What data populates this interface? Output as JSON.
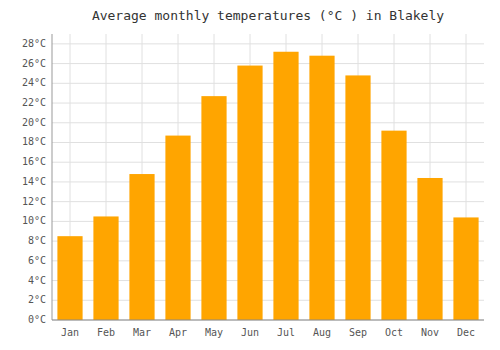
{
  "chart_data": {
    "type": "bar",
    "title": "Average monthly temperatures (°C ) in Blakely",
    "categories": [
      "Jan",
      "Feb",
      "Mar",
      "Apr",
      "May",
      "Jun",
      "Jul",
      "Aug",
      "Sep",
      "Oct",
      "Nov",
      "Dec"
    ],
    "values": [
      8.5,
      10.5,
      14.8,
      18.7,
      22.7,
      25.8,
      27.2,
      26.8,
      24.8,
      19.2,
      14.4,
      10.4
    ],
    "color": "#FFA500",
    "ylim": [
      0,
      29
    ],
    "yticks": [
      {
        "value": 0,
        "label": "0°C"
      },
      {
        "value": 2,
        "label": "2°C"
      },
      {
        "value": 4,
        "label": "4°C"
      },
      {
        "value": 6,
        "label": "6°C"
      },
      {
        "value": 8,
        "label": "8°C"
      },
      {
        "value": 10,
        "label": "10°C"
      },
      {
        "value": 12,
        "label": "12°C"
      },
      {
        "value": 14,
        "label": "14°C"
      },
      {
        "value": 16,
        "label": "16°C"
      },
      {
        "value": 18,
        "label": "18°C"
      },
      {
        "value": 20,
        "label": "20°C"
      },
      {
        "value": 22,
        "label": "22°C"
      },
      {
        "value": 24,
        "label": "24°C"
      },
      {
        "value": 26,
        "label": "26°C"
      },
      {
        "value": 28,
        "label": "28°C"
      }
    ],
    "grid": true
  }
}
